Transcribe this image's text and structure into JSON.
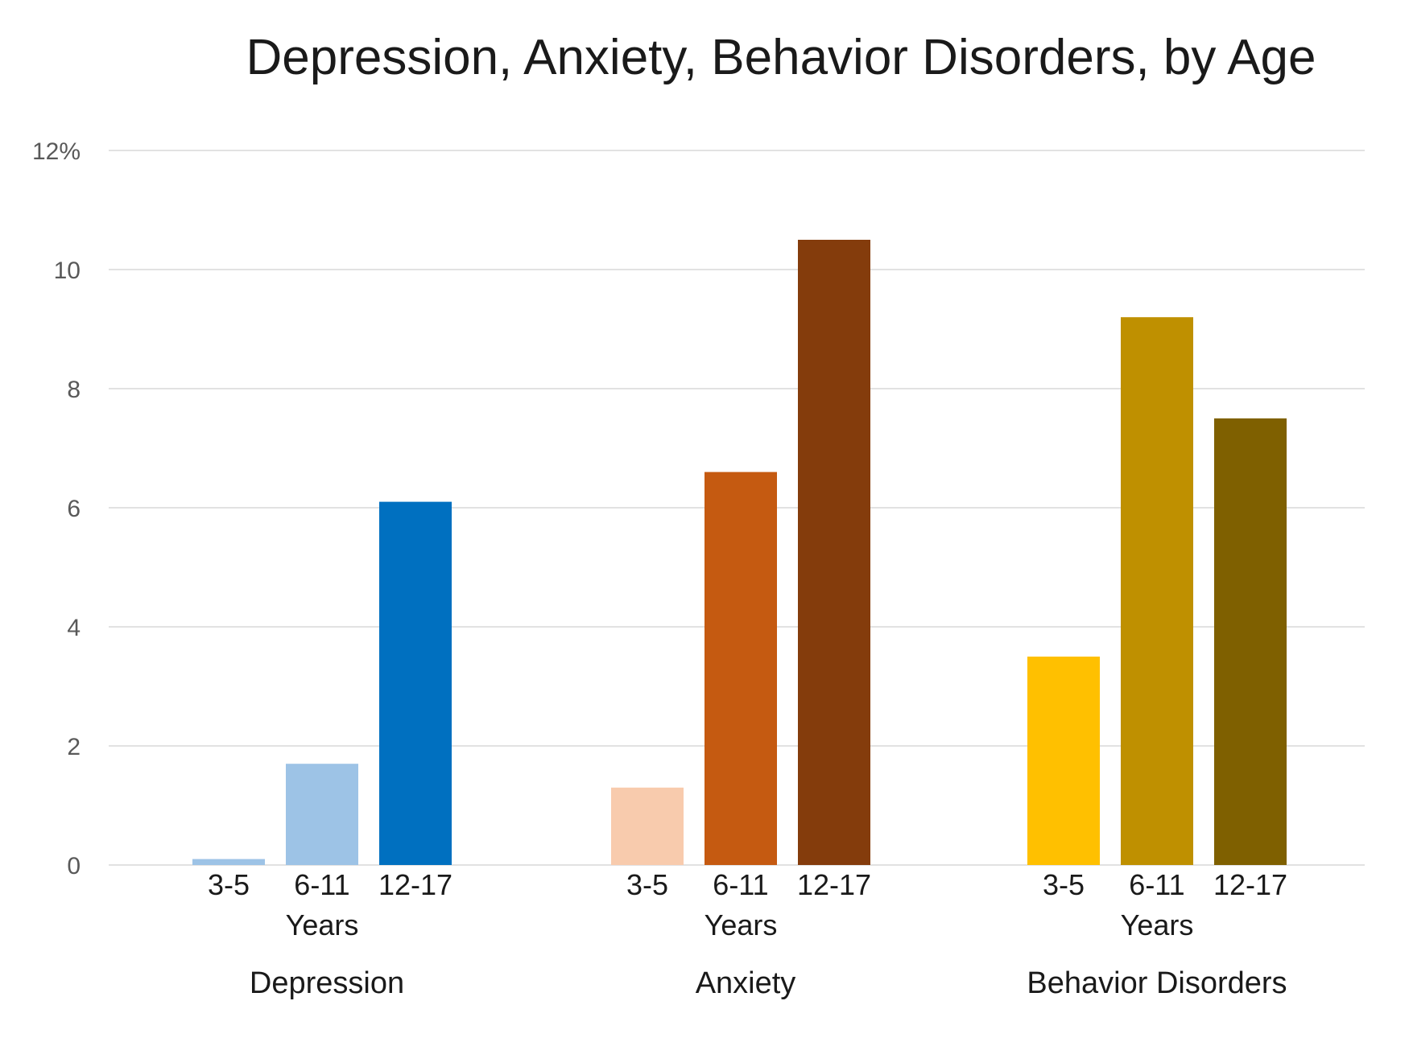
{
  "title": "Depression, Anxiety, Behavior Disorders, by Age",
  "chart_data": {
    "type": "bar",
    "title": "Depression, Anxiety, Behavior Disorders, by Age",
    "ylim": [
      0,
      12
    ],
    "yticks": [
      {
        "value": 0,
        "label": "0"
      },
      {
        "value": 2,
        "label": "2"
      },
      {
        "value": 4,
        "label": "4"
      },
      {
        "value": 6,
        "label": "6"
      },
      {
        "value": 8,
        "label": "8"
      },
      {
        "value": 10,
        "label": "10"
      },
      {
        "value": 12,
        "label": "12%"
      }
    ],
    "grid": true,
    "groups": [
      {
        "name": "Depression",
        "sublabel": "Years",
        "categories": [
          "3-5",
          "6-11",
          "12-17"
        ],
        "values": [
          0.1,
          1.7,
          6.1
        ],
        "colors": [
          "#9dc3e6",
          "#9dc3e6",
          "#0070c0"
        ]
      },
      {
        "name": "Anxiety",
        "sublabel": "Years",
        "categories": [
          "3-5",
          "6-11",
          "12-17"
        ],
        "values": [
          1.3,
          6.6,
          10.5
        ],
        "colors": [
          "#f8cbad",
          "#c55a11",
          "#843c0c"
        ]
      },
      {
        "name": "Behavior Disorders",
        "sublabel": "Years",
        "categories": [
          "3-5",
          "6-11",
          "12-17"
        ],
        "values": [
          3.5,
          9.2,
          7.5
        ],
        "colors": [
          "#ffc000",
          "#bf9000",
          "#7f6000"
        ]
      }
    ]
  }
}
